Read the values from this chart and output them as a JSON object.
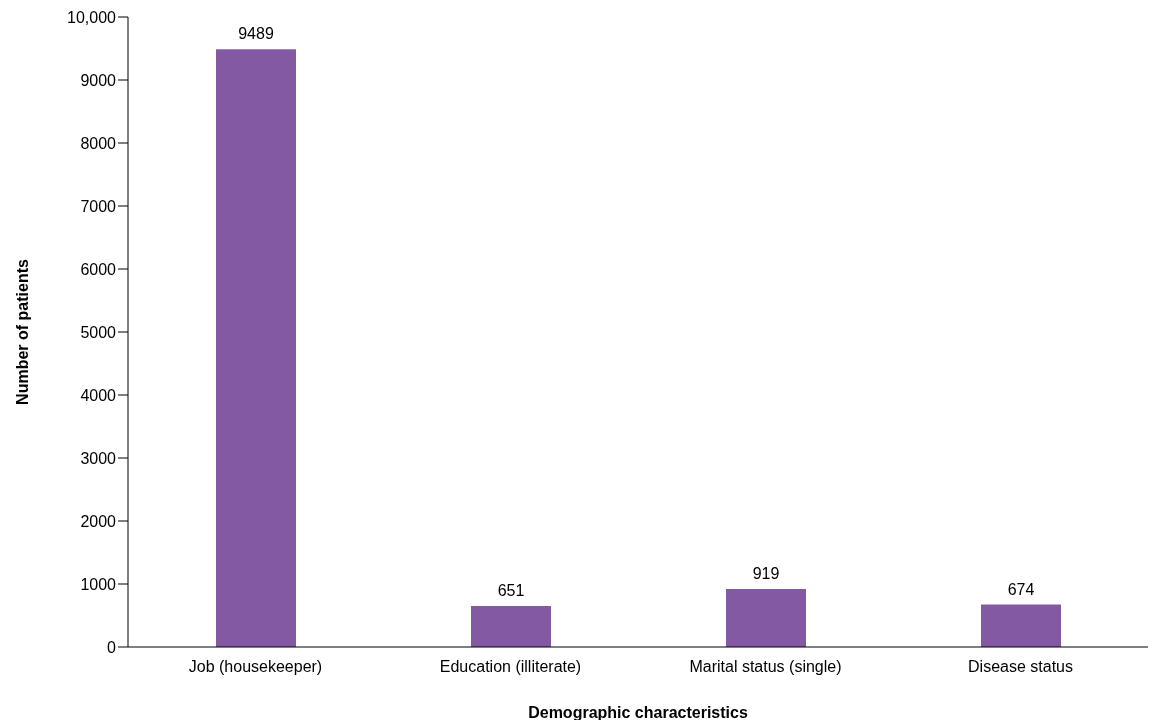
{
  "chart_data": {
    "type": "bar",
    "xlabel": "Demographic characteristics",
    "ylabel": "Number of patients",
    "categories": [
      "Job (housekeeper)",
      "Education (illiterate)",
      "Marital status (single)",
      "Disease status"
    ],
    "values": [
      9489,
      651,
      919,
      674
    ],
    "color": "#8459a4",
    "ylim": [
      0,
      10000
    ],
    "yticks": [
      0,
      1000,
      2000,
      3000,
      4000,
      5000,
      6000,
      7000,
      8000,
      9000,
      {
        "value": 10000,
        "label": "10,000"
      }
    ],
    "data_labels": true,
    "grid": false,
    "legend": false
  }
}
